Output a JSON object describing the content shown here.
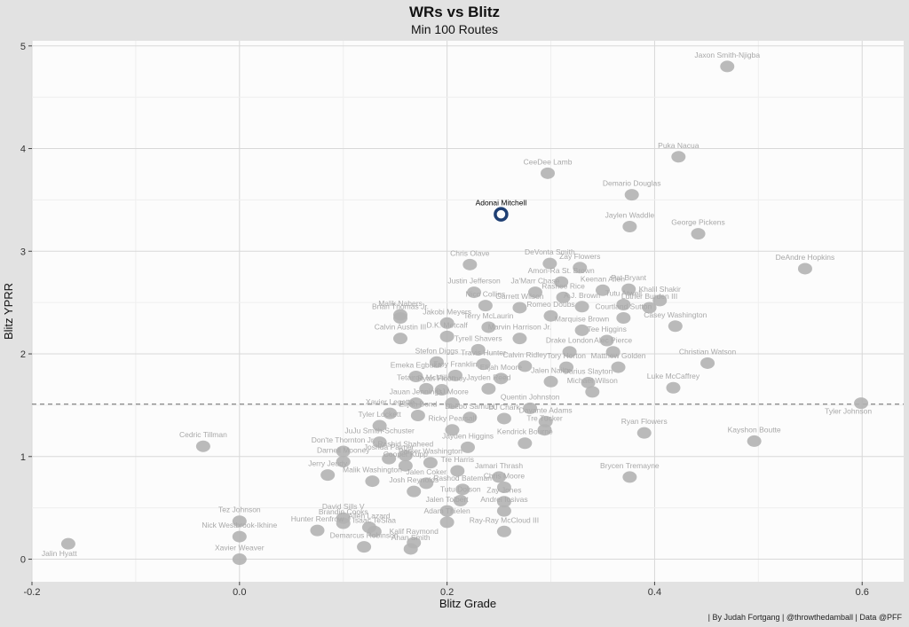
{
  "chart_data": {
    "type": "scatter",
    "title": "WRs vs Blitz",
    "subtitle": "Min 100 Routes",
    "xlabel": "Blitz Grade",
    "ylabel": "Blitz YPRR",
    "xlim": [
      -0.2,
      0.64
    ],
    "ylim": [
      -0.22,
      5.05
    ],
    "x_ticks": [
      "-0.2",
      "0.0",
      "0.2",
      "0.4",
      "0.6"
    ],
    "y_ticks": [
      "0",
      "1",
      "2",
      "3",
      "4",
      "5"
    ],
    "x_tick_values": [
      -0.2,
      0.0,
      0.2,
      0.4,
      0.6
    ],
    "y_tick_values": [
      0,
      1,
      2,
      3,
      4,
      5
    ],
    "grid": true,
    "reference_line": {
      "y": 1.51,
      "style": "dashed"
    },
    "highlight": "Adonai Mitchell",
    "highlight_color": "#1f3f73",
    "point_color": "#b2b2b2",
    "caption": "| By Judah Fortgang | @throwthedamball | Data @PFF",
    "points": [
      {
        "name": "Jaxon Smith-Njigba",
        "x": 0.47,
        "y": 4.8
      },
      {
        "name": "Puka Nacua",
        "x": 0.423,
        "y": 3.92
      },
      {
        "name": "CeeDee Lamb",
        "x": 0.297,
        "y": 3.76
      },
      {
        "name": "Demario Douglas",
        "x": 0.378,
        "y": 3.55
      },
      {
        "name": "Adonai Mitchell",
        "x": 0.252,
        "y": 3.36
      },
      {
        "name": "Jaylen Waddle",
        "x": 0.376,
        "y": 3.24
      },
      {
        "name": "George Pickens",
        "x": 0.442,
        "y": 3.17
      },
      {
        "name": "DeAndre Hopkins",
        "x": 0.545,
        "y": 2.83
      },
      {
        "name": "Chris Olave",
        "x": 0.222,
        "y": 2.87
      },
      {
        "name": "DeVonta Smith",
        "x": 0.299,
        "y": 2.88
      },
      {
        "name": "Zay Flowers",
        "x": 0.328,
        "y": 2.84
      },
      {
        "name": "Amon-Ra St. Brown",
        "x": 0.31,
        "y": 2.7
      },
      {
        "name": "Keenan Allen",
        "x": 0.35,
        "y": 2.62
      },
      {
        "name": "Justin Jefferson",
        "x": 0.226,
        "y": 2.6
      },
      {
        "name": "Ja'Marr Chase",
        "x": 0.285,
        "y": 2.6
      },
      {
        "name": "Rashee Rice",
        "x": 0.312,
        "y": 2.55
      },
      {
        "name": "Pat Bryant",
        "x": 0.375,
        "y": 2.63
      },
      {
        "name": "Khalil Shakir",
        "x": 0.405,
        "y": 2.52
      },
      {
        "name": "Nico Collins",
        "x": 0.237,
        "y": 2.47
      },
      {
        "name": "Garrett Wilson",
        "x": 0.27,
        "y": 2.45
      },
      {
        "name": "A.J. Brown",
        "x": 0.33,
        "y": 2.46
      },
      {
        "name": "Tutu Atwell",
        "x": 0.37,
        "y": 2.48
      },
      {
        "name": "Luther Burden III",
        "x": 0.395,
        "y": 2.45
      },
      {
        "name": "Malik Nabers",
        "x": 0.155,
        "y": 2.38
      },
      {
        "name": "Romeo Doubs",
        "x": 0.3,
        "y": 2.37
      },
      {
        "name": "Courtland Sutton",
        "x": 0.37,
        "y": 2.35
      },
      {
        "name": "Brian Thomas Jr.",
        "x": 0.155,
        "y": 2.35
      },
      {
        "name": "Jakobi Meyers",
        "x": 0.2,
        "y": 2.3
      },
      {
        "name": "Terry McLaurin",
        "x": 0.24,
        "y": 2.26
      },
      {
        "name": "Marquise Brown",
        "x": 0.33,
        "y": 2.23
      },
      {
        "name": "Casey Washington",
        "x": 0.42,
        "y": 2.27
      },
      {
        "name": "Calvin Austin III",
        "x": 0.155,
        "y": 2.15
      },
      {
        "name": "D.K. Metcalf",
        "x": 0.2,
        "y": 2.17
      },
      {
        "name": "Marvin Harrison Jr.",
        "x": 0.27,
        "y": 2.15
      },
      {
        "name": "Tee Higgins",
        "x": 0.354,
        "y": 2.13
      },
      {
        "name": "Tyrell Shavers",
        "x": 0.23,
        "y": 2.04
      },
      {
        "name": "Drake London",
        "x": 0.318,
        "y": 2.02
      },
      {
        "name": "Alec Pierce",
        "x": 0.36,
        "y": 2.02
      },
      {
        "name": "Christian Watson",
        "x": 0.451,
        "y": 1.91
      },
      {
        "name": "Stefon Diggs",
        "x": 0.19,
        "y": 1.92
      },
      {
        "name": "Travis Hunter",
        "x": 0.235,
        "y": 1.9
      },
      {
        "name": "Calvin Ridley",
        "x": 0.275,
        "y": 1.88
      },
      {
        "name": "Tory Horton",
        "x": 0.315,
        "y": 1.87
      },
      {
        "name": "Matthew Golden",
        "x": 0.365,
        "y": 1.87
      },
      {
        "name": "Emeka Egbuka",
        "x": 0.17,
        "y": 1.78
      },
      {
        "name": "Troy Franklin",
        "x": 0.208,
        "y": 1.79
      },
      {
        "name": "Elijah Moore",
        "x": 0.252,
        "y": 1.76
      },
      {
        "name": "Jalen Nailor",
        "x": 0.3,
        "y": 1.73
      },
      {
        "name": "Darius Slayton",
        "x": 0.336,
        "y": 1.72
      },
      {
        "name": "Luke McCaffrey",
        "x": 0.418,
        "y": 1.67
      },
      {
        "name": "Tetairoa McMillan",
        "x": 0.18,
        "y": 1.66
      },
      {
        "name": "Ryan Flournoy",
        "x": 0.195,
        "y": 1.65
      },
      {
        "name": "Jayden Reed",
        "x": 0.24,
        "y": 1.66
      },
      {
        "name": "Michael Wilson",
        "x": 0.34,
        "y": 1.63
      },
      {
        "name": "Jauan Jennings",
        "x": 0.17,
        "y": 1.52
      },
      {
        "name": "DJ Moore",
        "x": 0.205,
        "y": 1.52
      },
      {
        "name": "Quentin Johnston",
        "x": 0.28,
        "y": 1.47
      },
      {
        "name": "Tyler Johnson",
        "x": 0.599,
        "y": 1.52
      },
      {
        "name": "Xavier Legette",
        "x": 0.145,
        "y": 1.42
      },
      {
        "name": "Elijah Bond",
        "x": 0.172,
        "y": 1.4
      },
      {
        "name": "Deebo Samuel",
        "x": 0.222,
        "y": 1.38
      },
      {
        "name": "DJ Chark",
        "x": 0.255,
        "y": 1.37
      },
      {
        "name": "Davante Adams",
        "x": 0.295,
        "y": 1.34
      },
      {
        "name": "Tyler Lockett",
        "x": 0.135,
        "y": 1.3
      },
      {
        "name": "Ricky Pearsall",
        "x": 0.205,
        "y": 1.26
      },
      {
        "name": "Tre Tucker",
        "x": 0.294,
        "y": 1.26
      },
      {
        "name": "Ryan Flowers",
        "x": 0.39,
        "y": 1.23
      },
      {
        "name": "Cedric Tillman",
        "x": -0.035,
        "y": 1.1
      },
      {
        "name": "JuJu Smith-Schuster",
        "x": 0.135,
        "y": 1.14
      },
      {
        "name": "Jayden Higgins",
        "x": 0.22,
        "y": 1.09
      },
      {
        "name": "Kendrick Bourne",
        "x": 0.275,
        "y": 1.13
      },
      {
        "name": "Kayshon Boutte",
        "x": 0.496,
        "y": 1.15
      },
      {
        "name": "Don'te Thornton Jr.",
        "x": 0.1,
        "y": 1.05
      },
      {
        "name": "Joshua Palmer",
        "x": 0.144,
        "y": 0.98
      },
      {
        "name": "Rashid Shaheed",
        "x": 0.16,
        "y": 1.01
      },
      {
        "name": "Darnell Mooney",
        "x": 0.1,
        "y": 0.95
      },
      {
        "name": "Parker Washington",
        "x": 0.184,
        "y": 0.94
      },
      {
        "name": "Cooper Kupp",
        "x": 0.16,
        "y": 0.91
      },
      {
        "name": "Tre Harris",
        "x": 0.21,
        "y": 0.86
      },
      {
        "name": "Jerry Jeudy",
        "x": 0.085,
        "y": 0.82
      },
      {
        "name": "Jamari Thrash",
        "x": 0.25,
        "y": 0.8
      },
      {
        "name": "Brycen Tremayne",
        "x": 0.376,
        "y": 0.8
      },
      {
        "name": "Jalen Coker",
        "x": 0.18,
        "y": 0.74
      },
      {
        "name": "Malik Washington",
        "x": 0.128,
        "y": 0.76
      },
      {
        "name": "Chris Moore",
        "x": 0.255,
        "y": 0.7
      },
      {
        "name": "Rashod Bateman",
        "x": 0.215,
        "y": 0.68
      },
      {
        "name": "Josh Reynolds",
        "x": 0.168,
        "y": 0.66
      },
      {
        "name": "Tutu Dolson",
        "x": 0.213,
        "y": 0.57
      },
      {
        "name": "Zay Jones",
        "x": 0.255,
        "y": 0.56
      },
      {
        "name": "Jalen Tolbert",
        "x": 0.2,
        "y": 0.47
      },
      {
        "name": "Andrei Iosivas",
        "x": 0.255,
        "y": 0.47
      },
      {
        "name": "David Sills V",
        "x": 0.1,
        "y": 0.4
      },
      {
        "name": "Tez Johnson",
        "x": 0.0,
        "y": 0.37
      },
      {
        "name": "Brandin Cooks",
        "x": 0.1,
        "y": 0.35
      },
      {
        "name": "Adam Thielen",
        "x": 0.2,
        "y": 0.36
      },
      {
        "name": "Allen Lazard",
        "x": 0.125,
        "y": 0.31
      },
      {
        "name": "Hunter Renfrow",
        "x": 0.075,
        "y": 0.28
      },
      {
        "name": "Isaac TeSlaa",
        "x": 0.13,
        "y": 0.27
      },
      {
        "name": "Ray-Ray McCloud III",
        "x": 0.255,
        "y": 0.27
      },
      {
        "name": "Jalin Hyatt",
        "x": -0.165,
        "y": 0.15
      },
      {
        "name": "Nick Westbrook-Ikhine",
        "x": 0.0,
        "y": 0.22
      },
      {
        "name": "Kalif Raymond",
        "x": 0.168,
        "y": 0.16
      },
      {
        "name": "Demarcus Robinson",
        "x": 0.12,
        "y": 0.12
      },
      {
        "name": "Xavier Weaver",
        "x": 0.0,
        "y": 0.0
      },
      {
        "name": "Anan Smith",
        "x": 0.165,
        "y": 0.1
      }
    ]
  }
}
